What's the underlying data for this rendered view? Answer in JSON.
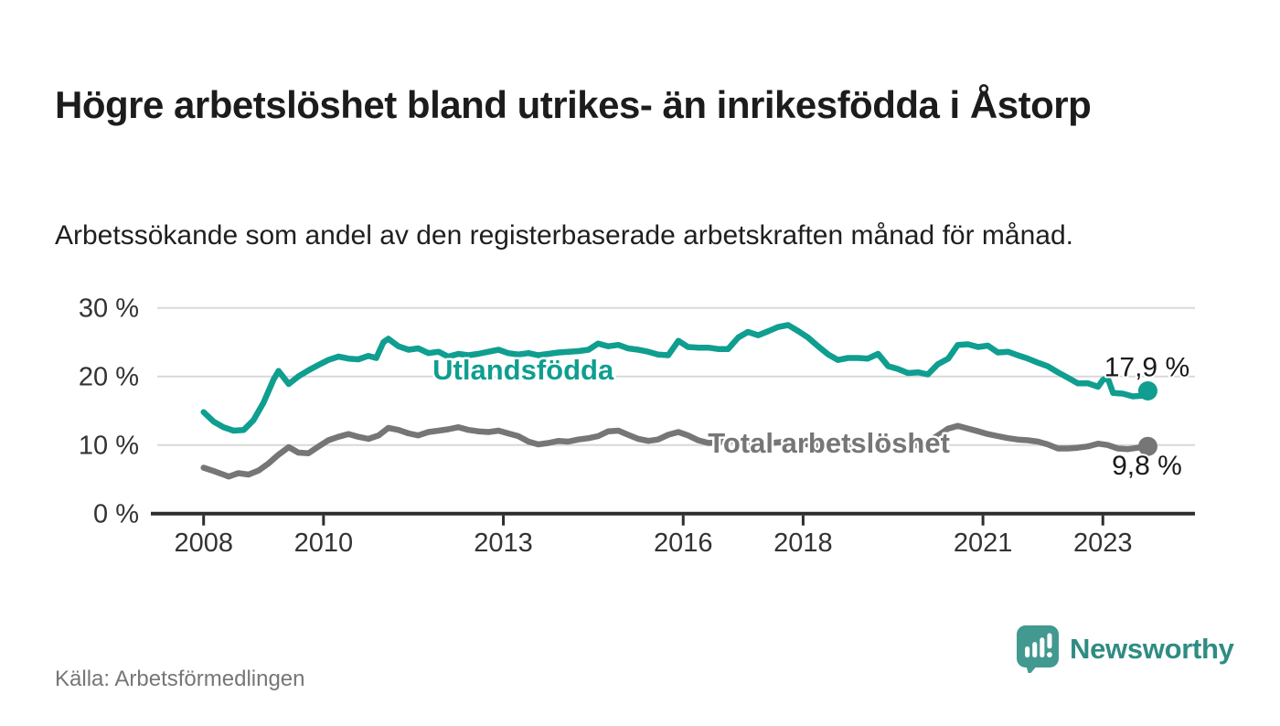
{
  "title": "Högre arbetslöshet bland utrikes- än inrikesfödda i Åstorp",
  "subtitle": "Arbetssökande som andel av den registerbaserade arbetskraften månad för månad.",
  "source": "Källa: Arbetsförmedlingen",
  "brand": {
    "name": "Newsworthy",
    "icon_color": "#41998f",
    "text_color": "#2f8c82"
  },
  "colors": {
    "background": "#ffffff",
    "grid": "#d9d9d9",
    "axis": "#2d2d2d",
    "axis_text": "#333333",
    "value_label_text": "#1a1a1a",
    "series_foreign_born": "#0f9e90",
    "series_total": "#767676"
  },
  "chart_data": {
    "type": "line",
    "title": "",
    "xlabel": "",
    "ylabel": "",
    "grid": "horizontal",
    "x_axis": {
      "range": [
        2007.23,
        2024.53
      ],
      "ticks": [
        2008,
        2010,
        2013,
        2016,
        2018,
        2021,
        2023
      ],
      "tick_labels": [
        "2008",
        "2010",
        "2013",
        "2016",
        "2018",
        "2021",
        "2023"
      ]
    },
    "y_axis": {
      "range": [
        0,
        30
      ],
      "ticks": [
        0,
        10,
        20,
        30
      ],
      "tick_labels": [
        "0 %",
        "10 %",
        "20 %",
        "30 %"
      ]
    },
    "series": [
      {
        "name": "Utlandsfödda",
        "color": "#0f9e90",
        "end_label": "17,9 %",
        "end_value": 17.9,
        "label_anchor": {
          "year": 2013.33,
          "value": 21.0
        },
        "points": [
          [
            2008.0,
            14.8
          ],
          [
            2008.17,
            13.4
          ],
          [
            2008.33,
            12.6
          ],
          [
            2008.5,
            12.1
          ],
          [
            2008.67,
            12.2
          ],
          [
            2008.83,
            13.6
          ],
          [
            2009.0,
            16.2
          ],
          [
            2009.17,
            19.6
          ],
          [
            2009.25,
            20.8
          ],
          [
            2009.42,
            18.9
          ],
          [
            2009.58,
            20.0
          ],
          [
            2009.75,
            20.9
          ],
          [
            2009.92,
            21.7
          ],
          [
            2010.08,
            22.4
          ],
          [
            2010.25,
            22.9
          ],
          [
            2010.42,
            22.6
          ],
          [
            2010.58,
            22.5
          ],
          [
            2010.75,
            23.0
          ],
          [
            2010.88,
            22.7
          ],
          [
            2011.0,
            25.0
          ],
          [
            2011.08,
            25.5
          ],
          [
            2011.25,
            24.4
          ],
          [
            2011.42,
            23.9
          ],
          [
            2011.58,
            24.1
          ],
          [
            2011.75,
            23.4
          ],
          [
            2011.92,
            23.6
          ],
          [
            2012.08,
            22.9
          ],
          [
            2012.25,
            23.3
          ],
          [
            2012.42,
            23.1
          ],
          [
            2012.58,
            23.3
          ],
          [
            2012.75,
            23.6
          ],
          [
            2012.92,
            23.9
          ],
          [
            2013.08,
            23.4
          ],
          [
            2013.25,
            23.2
          ],
          [
            2013.42,
            23.4
          ],
          [
            2013.58,
            23.1
          ],
          [
            2013.75,
            23.3
          ],
          [
            2013.92,
            23.5
          ],
          [
            2014.08,
            23.6
          ],
          [
            2014.25,
            23.7
          ],
          [
            2014.42,
            23.9
          ],
          [
            2014.58,
            24.8
          ],
          [
            2014.75,
            24.4
          ],
          [
            2014.92,
            24.6
          ],
          [
            2015.08,
            24.1
          ],
          [
            2015.25,
            23.9
          ],
          [
            2015.42,
            23.6
          ],
          [
            2015.58,
            23.2
          ],
          [
            2015.75,
            23.1
          ],
          [
            2015.92,
            25.2
          ],
          [
            2016.08,
            24.3
          ],
          [
            2016.25,
            24.2
          ],
          [
            2016.42,
            24.2
          ],
          [
            2016.58,
            24.0
          ],
          [
            2016.75,
            24.0
          ],
          [
            2016.92,
            25.7
          ],
          [
            2017.08,
            26.5
          ],
          [
            2017.25,
            26.0
          ],
          [
            2017.42,
            26.6
          ],
          [
            2017.58,
            27.2
          ],
          [
            2017.75,
            27.5
          ],
          [
            2017.92,
            26.6
          ],
          [
            2018.08,
            25.7
          ],
          [
            2018.25,
            24.4
          ],
          [
            2018.42,
            23.2
          ],
          [
            2018.58,
            22.4
          ],
          [
            2018.75,
            22.7
          ],
          [
            2018.92,
            22.7
          ],
          [
            2019.08,
            22.6
          ],
          [
            2019.25,
            23.3
          ],
          [
            2019.42,
            21.5
          ],
          [
            2019.58,
            21.1
          ],
          [
            2019.75,
            20.5
          ],
          [
            2019.92,
            20.6
          ],
          [
            2020.08,
            20.3
          ],
          [
            2020.25,
            21.8
          ],
          [
            2020.42,
            22.6
          ],
          [
            2020.58,
            24.6
          ],
          [
            2020.75,
            24.7
          ],
          [
            2020.92,
            24.3
          ],
          [
            2021.08,
            24.5
          ],
          [
            2021.25,
            23.5
          ],
          [
            2021.42,
            23.6
          ],
          [
            2021.58,
            23.1
          ],
          [
            2021.75,
            22.6
          ],
          [
            2021.92,
            22.0
          ],
          [
            2022.08,
            21.5
          ],
          [
            2022.25,
            20.6
          ],
          [
            2022.42,
            19.8
          ],
          [
            2022.58,
            19.0
          ],
          [
            2022.75,
            19.0
          ],
          [
            2022.92,
            18.5
          ],
          [
            2023.0,
            19.5
          ],
          [
            2023.08,
            19.8
          ],
          [
            2023.17,
            17.6
          ],
          [
            2023.33,
            17.5
          ],
          [
            2023.5,
            17.1
          ],
          [
            2023.67,
            17.2
          ],
          [
            2023.75,
            17.9
          ]
        ]
      },
      {
        "name": "Total arbetslöshet",
        "color": "#767676",
        "end_label": "9,8 %",
        "end_value": 9.8,
        "label_anchor": {
          "year": 2018.43,
          "value": 10.35
        },
        "points": [
          [
            2008.0,
            6.7
          ],
          [
            2008.17,
            6.2
          ],
          [
            2008.33,
            5.7
          ],
          [
            2008.42,
            5.4
          ],
          [
            2008.58,
            5.9
          ],
          [
            2008.75,
            5.7
          ],
          [
            2008.92,
            6.3
          ],
          [
            2009.08,
            7.3
          ],
          [
            2009.25,
            8.6
          ],
          [
            2009.42,
            9.7
          ],
          [
            2009.58,
            8.9
          ],
          [
            2009.75,
            8.8
          ],
          [
            2009.92,
            9.8
          ],
          [
            2010.08,
            10.7
          ],
          [
            2010.25,
            11.2
          ],
          [
            2010.42,
            11.6
          ],
          [
            2010.58,
            11.2
          ],
          [
            2010.75,
            10.9
          ],
          [
            2010.92,
            11.4
          ],
          [
            2011.08,
            12.5
          ],
          [
            2011.25,
            12.2
          ],
          [
            2011.42,
            11.7
          ],
          [
            2011.58,
            11.4
          ],
          [
            2011.75,
            11.9
          ],
          [
            2011.92,
            12.1
          ],
          [
            2012.08,
            12.3
          ],
          [
            2012.25,
            12.6
          ],
          [
            2012.42,
            12.2
          ],
          [
            2012.58,
            12.0
          ],
          [
            2012.75,
            11.9
          ],
          [
            2012.92,
            12.1
          ],
          [
            2013.08,
            11.7
          ],
          [
            2013.25,
            11.3
          ],
          [
            2013.42,
            10.5
          ],
          [
            2013.58,
            10.1
          ],
          [
            2013.75,
            10.3
          ],
          [
            2013.92,
            10.6
          ],
          [
            2014.08,
            10.5
          ],
          [
            2014.25,
            10.8
          ],
          [
            2014.42,
            11.0
          ],
          [
            2014.58,
            11.3
          ],
          [
            2014.75,
            12.0
          ],
          [
            2014.92,
            12.1
          ],
          [
            2015.08,
            11.5
          ],
          [
            2015.25,
            10.9
          ],
          [
            2015.42,
            10.6
          ],
          [
            2015.58,
            10.8
          ],
          [
            2015.75,
            11.5
          ],
          [
            2015.92,
            11.9
          ],
          [
            2016.08,
            11.4
          ],
          [
            2016.25,
            10.7
          ],
          [
            2016.42,
            10.3
          ],
          [
            2016.58,
            10.4
          ],
          [
            2016.75,
            10.6
          ],
          [
            2016.92,
            10.7
          ],
          [
            2017.08,
            10.5
          ],
          [
            2017.25,
            10.3
          ],
          [
            2017.42,
            10.2
          ],
          [
            2017.58,
            10.4
          ],
          [
            2017.75,
            10.5
          ],
          [
            2017.92,
            10.3
          ],
          [
            2018.08,
            10.1
          ],
          [
            2018.25,
            9.9
          ],
          [
            2018.42,
            9.8
          ],
          [
            2018.58,
            10.0
          ],
          [
            2018.75,
            10.1
          ],
          [
            2018.92,
            9.9
          ],
          [
            2019.08,
            9.7
          ],
          [
            2019.25,
            9.6
          ],
          [
            2019.42,
            9.5
          ],
          [
            2019.58,
            9.7
          ],
          [
            2019.75,
            9.8
          ],
          [
            2019.92,
            10.0
          ],
          [
            2020.08,
            10.5
          ],
          [
            2020.25,
            11.4
          ],
          [
            2020.42,
            12.4
          ],
          [
            2020.58,
            12.8
          ],
          [
            2020.75,
            12.4
          ],
          [
            2020.92,
            12.0
          ],
          [
            2021.08,
            11.6
          ],
          [
            2021.25,
            11.3
          ],
          [
            2021.42,
            11.0
          ],
          [
            2021.58,
            10.8
          ],
          [
            2021.75,
            10.7
          ],
          [
            2021.92,
            10.5
          ],
          [
            2022.08,
            10.1
          ],
          [
            2022.25,
            9.5
          ],
          [
            2022.42,
            9.5
          ],
          [
            2022.58,
            9.6
          ],
          [
            2022.75,
            9.8
          ],
          [
            2022.92,
            10.2
          ],
          [
            2023.08,
            10.0
          ],
          [
            2023.25,
            9.5
          ],
          [
            2023.42,
            9.4
          ],
          [
            2023.58,
            9.6
          ],
          [
            2023.75,
            9.8
          ]
        ]
      }
    ]
  }
}
